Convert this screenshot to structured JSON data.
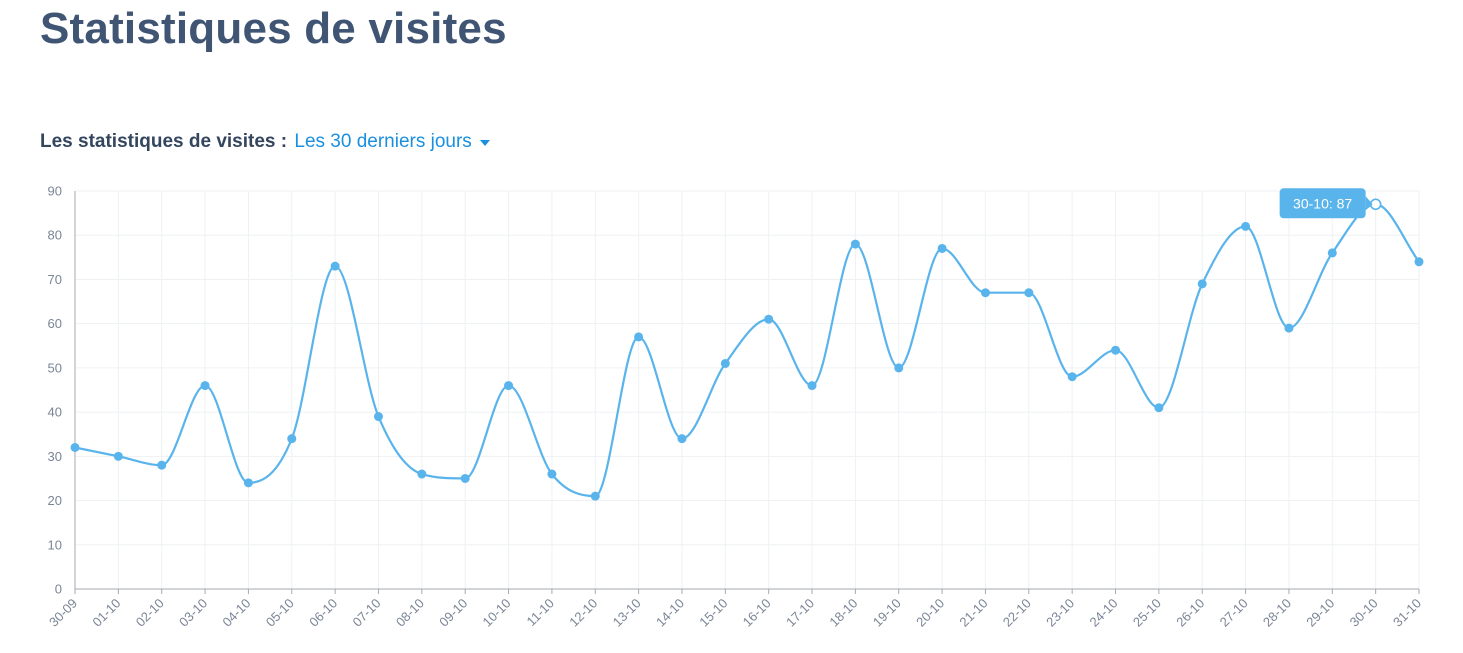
{
  "page": {
    "title": "Statistiques de visites"
  },
  "filter": {
    "label": "Les statistiques de visites :",
    "selected_period": "Les 30 derniers jours"
  },
  "colors": {
    "line": "#5ab4ec",
    "grid": "#eef1f4",
    "axis": "#a5aab0",
    "tooltip_bg": "#5ab4ec"
  },
  "chart_data": {
    "type": "line",
    "title": "",
    "xlabel": "",
    "ylabel": "",
    "ylim": [
      0,
      90
    ],
    "yticks": [
      0,
      10,
      20,
      30,
      40,
      50,
      60,
      70,
      80,
      90
    ],
    "grid": true,
    "smooth": true,
    "categories": [
      "30-09",
      "01-10",
      "02-10",
      "03-10",
      "04-10",
      "05-10",
      "06-10",
      "07-10",
      "08-10",
      "09-10",
      "10-10",
      "11-10",
      "12-10",
      "13-10",
      "14-10",
      "15-10",
      "16-10",
      "17-10",
      "18-10",
      "19-10",
      "20-10",
      "21-10",
      "22-10",
      "23-10",
      "24-10",
      "25-10",
      "26-10",
      "27-10",
      "28-10",
      "29-10",
      "30-10",
      "31-10"
    ],
    "series": [
      {
        "values": [
          32,
          30,
          28,
          46,
          24,
          34,
          73,
          39,
          26,
          25,
          46,
          26,
          21,
          57,
          34,
          51,
          61,
          46,
          78,
          50,
          77,
          67,
          67,
          48,
          54,
          41,
          69,
          82,
          59,
          76,
          87,
          74
        ]
      }
    ],
    "tooltip": {
      "category": "30-10",
      "text": "30-10: 87"
    }
  }
}
